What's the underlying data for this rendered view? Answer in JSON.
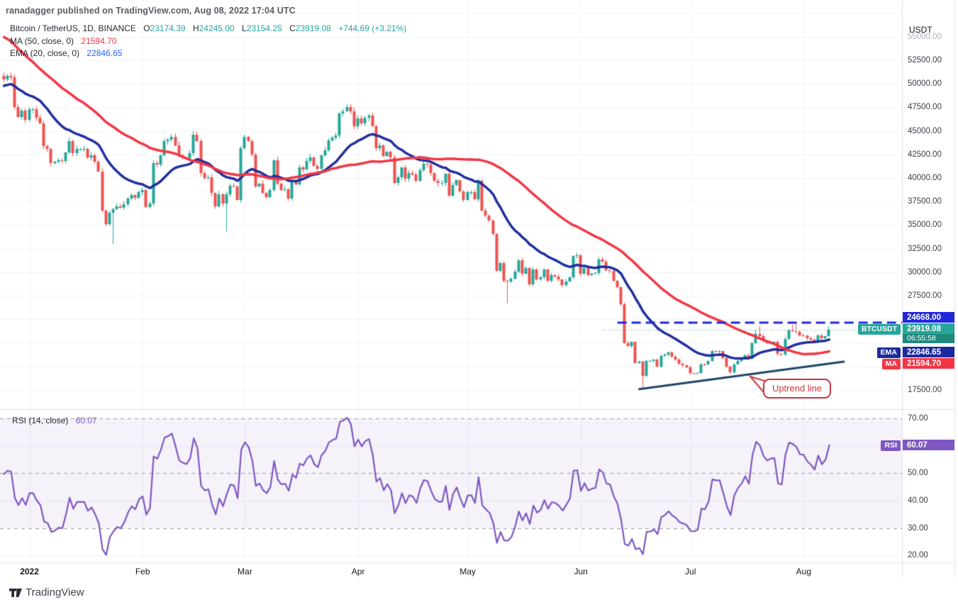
{
  "watermark": "ranadagger published on TradingView.com, Aug 08, 2022 17:04 UTC",
  "header": {
    "title": "Bitcoin / TetherUS, 1D, BINANCE",
    "o_label": "O",
    "o_value": "23174.39",
    "h_label": "H",
    "h_value": "24245.00",
    "l_label": "L",
    "l_value": "23154.25",
    "c_label": "C",
    "c_value": "23919.08",
    "change": "+744.69 (+3.21%)"
  },
  "ma_legend": {
    "label": "MA (50, close, 0)",
    "value": "21594.70"
  },
  "ema_legend": {
    "label": "EMA (20, close, 0)",
    "value": "22846.65"
  },
  "rsi_legend": {
    "label": "RSI (14, close)",
    "value": "60.07"
  },
  "axis": {
    "currency": "USDT",
    "price_ticks": [
      55000,
      52500,
      50000,
      47500,
      45000,
      42500,
      40000,
      37500,
      35000,
      32500,
      30000,
      27500,
      17500
    ],
    "rsi_ticks": [
      70,
      50,
      40,
      30,
      20
    ],
    "months": [
      {
        "label": "2022",
        "index": 7
      },
      {
        "label": "Feb",
        "index": 38
      },
      {
        "label": "Mar",
        "index": 66
      },
      {
        "label": "Apr",
        "index": 97
      },
      {
        "label": "May",
        "index": 127
      },
      {
        "label": "Jun",
        "index": 158
      },
      {
        "label": "Jul",
        "index": 188
      },
      {
        "label": "Aug",
        "index": 219
      }
    ]
  },
  "badges": {
    "level": "24668.00",
    "symbol_tag": "BTCUSDT",
    "last_price": "23919.08",
    "countdown": "06:55:58",
    "ema_tag": "EMA",
    "ema_value": "22846.65",
    "ma_tag": "MA",
    "ma_value": "21594.70",
    "rsi_tag": "RSI",
    "rsi_value": "60.07"
  },
  "annotation": {
    "text": "Uptrend line"
  },
  "logo_text": "TradingView",
  "colors": {
    "up": "#26a69a",
    "down": "#ef5350",
    "ma": "#f23645",
    "ema": "#202f9c",
    "level_line": "#2128d9",
    "trendline": "#1f4569",
    "rsi": "#7e57c2",
    "rsi_band": "rgba(126,87,194,0.08)",
    "rsi_hline": "#989aa4",
    "callout": "#c9353f",
    "grid": "#f0f3fa",
    "axis_border": "#e0e3eb",
    "price_line": "#26a69a"
  },
  "chart_data": {
    "type": "candlestick",
    "symbol": "BTCUSDT",
    "exchange": "BINANCE",
    "timeframe": "1D",
    "closes_start": "2021-12-25",
    "price_axis": {
      "visible_min": 15500,
      "visible_max": 58800,
      "tick_step": 2500,
      "currency": "USDT"
    },
    "pre_closes": [
      61000,
      63250,
      62900,
      61400,
      61000,
      61500,
      63300,
      67550,
      66950,
      64950,
      64800,
      64150,
      64400,
      65500,
      63600,
      60100,
      60350,
      56900,
      58100,
      59700,
      58700,
      56250,
      57550,
      57150,
      59000,
      53700,
      54700,
      57300,
      57800,
      57000,
      57200,
      56500,
      53600,
      49200,
      49400,
      50600,
      50700,
      49400,
      47600,
      47150,
      49400,
      50100,
      46700,
      46900,
      48900,
      47650,
      46200,
      46900,
      46700,
      46900,
      48900,
      48600,
      50800,
      50850
    ],
    "closes": [
      50430,
      50810,
      50700,
      47550,
      46500,
      47150,
      46200,
      47300,
      47300,
      46400,
      45800,
      43400,
      43100,
      41600,
      41700,
      41900,
      41800,
      42700,
      43900,
      42600,
      43100,
      43100,
      43100,
      42200,
      42400,
      41700,
      40700,
      36500,
      35100,
      36300,
      36700,
      37000,
      36800,
      37200,
      37800,
      38200,
      37900,
      38500,
      38700,
      36900,
      37300,
      41600,
      41400,
      42400,
      43900,
      44100,
      44400,
      43500,
      42400,
      42200,
      42100,
      42600,
      44600,
      43900,
      40500,
      40000,
      40100,
      38400,
      37000,
      38300,
      37300,
      38300,
      39200,
      39100,
      37700,
      43200,
      44400,
      43900,
      42500,
      39100,
      39400,
      38400,
      38000,
      38700,
      41900,
      39400,
      38700,
      38800,
      37800,
      39700,
      39300,
      41100,
      40900,
      41800,
      42200,
      41300,
      41000,
      42400,
      42900,
      44000,
      44300,
      44500,
      46850,
      47100,
      47500,
      47100,
      45500,
      46300,
      45800,
      46400,
      46600,
      45500,
      43200,
      43500,
      42300,
      42800,
      42200,
      39500,
      40100,
      41100,
      39900,
      40550,
      40400,
      39700,
      40800,
      41500,
      41400,
      40500,
      39700,
      39450,
      39450,
      40450,
      38100,
      39250,
      39750,
      38600,
      37650,
      38500,
      38530,
      37750,
      39700,
      36550,
      36000,
      35500,
      34060,
      30100,
      31000,
      29100,
      29000,
      29300,
      30080,
      31300,
      29850,
      30450,
      28700,
      30300,
      29200,
      29450,
      30290,
      29100,
      29650,
      29560,
      29200,
      28620,
      29030,
      29470,
      31730,
      31790,
      29800,
      30450,
      29700,
      29850,
      29910,
      31370,
      31125,
      30205,
      30110,
      29080,
      28400,
      26575,
      22490,
      22130,
      22570,
      20380,
      20470,
      19010,
      20570,
      20570,
      20710,
      19970,
      21100,
      21230,
      21490,
      21030,
      20730,
      20260,
      20100,
      19925,
      19270,
      19240,
      19300,
      20230,
      20190,
      20550,
      21640,
      21590,
      21590,
      20860,
      19960,
      19330,
      20230,
      20590,
      20820,
      21190,
      20780,
      22440,
      23400,
      23230,
      22700,
      22460,
      22580,
      22600,
      21310,
      21250,
      22930,
      23840,
      23770,
      23640,
      23290,
      23270,
      22980,
      22840,
      22630,
      23310,
      22950,
      23174,
      23919.08
    ],
    "wick_overrides": {
      "30": {
        "low": 33000
      },
      "61": {
        "low": 34300
      },
      "138": {
        "low": 26700
      },
      "175": {
        "low": 17622
      },
      "206": {
        "high": 23850
      },
      "207": {
        "high": 24280
      },
      "216": {
        "high": 24445
      },
      "217": {
        "high": 24668
      }
    },
    "last_candle": {
      "open": 23174.39,
      "high": 24245.0,
      "low": 23154.25,
      "close": 23919.08
    },
    "overlays": [
      {
        "type": "sma",
        "period": 50,
        "color_key": "ma",
        "last_value": 21594.7
      },
      {
        "type": "ema",
        "period": 20,
        "color_key": "ema",
        "last_value": 22846.65
      }
    ],
    "rsi": {
      "period": 14,
      "last_value": 60.07,
      "upper": 70,
      "lower": 30,
      "middle": 50,
      "axis_range": [
        17.5,
        73.5
      ]
    },
    "level_line": {
      "price": 24668.0,
      "from_index": 168,
      "style": "dashed"
    },
    "price_line": {
      "price": 23919.08,
      "from_index": 164,
      "style": "dotted"
    },
    "trendline": {
      "from": {
        "index": 174,
        "price": 17580
      },
      "to": {
        "index": 230,
        "price": 20500
      },
      "label": "Uptrend line"
    }
  }
}
